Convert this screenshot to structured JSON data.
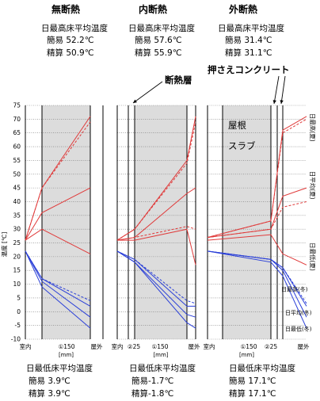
{
  "panels": [
    {
      "header": "無断熱",
      "max_title": "日最高床平均温度",
      "max_simple": "簡易 52.2℃",
      "max_precise": "精算 50.9℃",
      "min_title": "日最低床平均温度",
      "min_simple": "簡易 3.9℃",
      "min_precise": "精算 3.9℃",
      "x_ticks": [
        "室内",
        "①150",
        "屋外"
      ],
      "x_unit": "[mm]"
    },
    {
      "header": "内断熱",
      "max_title": "日最高床平均温度",
      "max_simple": "簡易 57.6℃",
      "max_precise": "精算 55.9℃",
      "min_title": "日最低床平均温度",
      "min_simple": "簡易-1.7℃",
      "min_precise": "精算-1.8℃",
      "x_ticks": [
        "室内",
        "②25",
        "①150",
        "屋外"
      ],
      "x_unit": "[mm]"
    },
    {
      "header": "外断熱",
      "max_title": "日最高床平均温度",
      "max_simple": "簡易 31.4℃",
      "max_precise": "精算 31.1℃",
      "min_title": "日最低床平均温度",
      "min_simple": "簡易 17.1℃",
      "min_precise": "精算 17.1℃",
      "x_ticks": [
        "室内",
        "①150",
        "②25",
        "屋外"
      ],
      "x_unit": "[mm]"
    }
  ],
  "annotations": {
    "insulation_layer": "断熱層",
    "topping_concrete": "押さえコンクリート",
    "roof": "屋根",
    "slab": "スラブ"
  },
  "series_labels": [
    "日最高(夏)",
    "日平均(夏)",
    "日最低(夏)",
    "日最高(冬)",
    "日平均(冬)",
    "日最低(冬)"
  ],
  "colors": {
    "summer": "#e03a3a",
    "winter": "#2a3fd8",
    "band": "#dcdcdc",
    "grid": "#000000"
  },
  "chart_data": {
    "type": "line",
    "ylabel": "温度 [℃]",
    "ylim": [
      -10,
      75
    ],
    "yticks": [
      75,
      70,
      65,
      60,
      55,
      50,
      45,
      40,
      35,
      30,
      25,
      20,
      15,
      10,
      5,
      0,
      -5,
      -10
    ],
    "panels": [
      {
        "name": "無断熱",
        "x": [
          0,
          1,
          2
        ],
        "series": [
          {
            "name": "日最高(夏)",
            "season": "summer",
            "style": "solid",
            "values": [
              26,
              45,
              71
            ]
          },
          {
            "name": "日最高(夏)",
            "season": "summer",
            "style": "dashed",
            "values": [
              26,
              45,
              69
            ]
          },
          {
            "name": "日平均(夏)",
            "season": "summer",
            "style": "solid",
            "values": [
              26,
              36,
              45
            ]
          },
          {
            "name": "日最低(夏)",
            "season": "summer",
            "style": "solid",
            "values": [
              26,
              30,
              21
            ]
          },
          {
            "name": "日最高(冬)",
            "season": "winter",
            "style": "solid",
            "values": [
              22,
              12,
              2
            ]
          },
          {
            "name": "日最高(冬)",
            "season": "winter",
            "style": "dashed",
            "values": [
              22,
              12,
              4
            ]
          },
          {
            "name": "日平均(冬)",
            "season": "winter",
            "style": "solid",
            "values": [
              22,
              11,
              -2
            ]
          },
          {
            "name": "日最低(冬)",
            "season": "winter",
            "style": "solid",
            "values": [
              22,
              9,
              -6
            ]
          }
        ]
      },
      {
        "name": "内断熱",
        "x": [
          0,
          1,
          2,
          3
        ],
        "series": [
          {
            "name": "日最高(夏)",
            "season": "summer",
            "style": "solid",
            "values": [
              26,
              30,
              55,
              71
            ]
          },
          {
            "name": "日最高(夏)",
            "season": "summer",
            "style": "dashed",
            "values": [
              26,
              30,
              54,
              69
            ]
          },
          {
            "name": "日平均(夏)",
            "season": "summer",
            "style": "solid",
            "values": [
              26,
              27,
              43,
              45
            ]
          },
          {
            "name": "日平均(夏)",
            "season": "summer",
            "style": "dashed",
            "values": [
              26,
              27,
              31,
              30
            ]
          },
          {
            "name": "日最低(夏)",
            "season": "summer",
            "style": "solid",
            "values": [
              26,
              26,
              30,
              17
            ]
          },
          {
            "name": "日最高(冬)",
            "season": "winter",
            "style": "solid",
            "values": [
              22,
              19,
              2,
              2
            ]
          },
          {
            "name": "日最高(冬)",
            "season": "winter",
            "style": "dashed",
            "values": [
              22,
              19,
              4,
              3
            ]
          },
          {
            "name": "日平均(冬)",
            "season": "winter",
            "style": "solid",
            "values": [
              22,
              18,
              -1,
              -2
            ]
          },
          {
            "name": "日最低(冬)",
            "season": "winter",
            "style": "solid",
            "values": [
              22,
              18,
              -4,
              -6
            ]
          }
        ]
      },
      {
        "name": "外断熱",
        "x": [
          0,
          1,
          2,
          3
        ],
        "series": [
          {
            "name": "日最高(夏)",
            "season": "summer",
            "style": "solid",
            "values": [
              27,
              33,
              66,
              71
            ]
          },
          {
            "name": "日最高(夏)",
            "season": "summer",
            "style": "dashed",
            "values": [
              27,
              33,
              65,
              70
            ]
          },
          {
            "name": "日平均(夏)",
            "season": "summer",
            "style": "solid",
            "values": [
              27,
              30,
              42,
              45
            ]
          },
          {
            "name": "日平均(夏)",
            "season": "summer",
            "style": "dashed",
            "values": [
              27,
              30,
              38,
              40
            ]
          },
          {
            "name": "日最低(夏)",
            "season": "summer",
            "style": "solid",
            "values": [
              26,
              28,
              21,
              17
            ]
          },
          {
            "name": "日最高(冬)",
            "season": "winter",
            "style": "solid",
            "values": [
              22,
              19,
              16,
              2
            ]
          },
          {
            "name": "日最高(冬)",
            "season": "winter",
            "style": "dashed",
            "values": [
              22,
              19,
              16,
              3
            ]
          },
          {
            "name": "日平均(冬)",
            "season": "winter",
            "style": "solid",
            "values": [
              22,
              19,
              15,
              -2
            ]
          },
          {
            "name": "日最低(冬)",
            "season": "winter",
            "style": "solid",
            "values": [
              22,
              18,
              13,
              -6
            ]
          }
        ]
      }
    ]
  }
}
